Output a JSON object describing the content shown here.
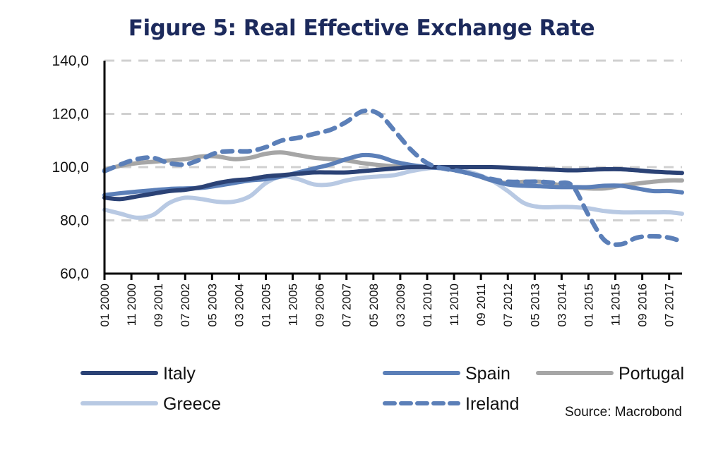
{
  "title": "Figure 5: Real Effective Exchange Rate",
  "source": "Source: Macrobond",
  "chart_data": {
    "type": "line",
    "title": "Figure 5: Real Effective Exchange Rate",
    "xlabel": "",
    "ylabel": "",
    "ylim": [
      60,
      140
    ],
    "yticks": [
      "60,0",
      "80,0",
      "100,0",
      "120,0",
      "140,0"
    ],
    "ytick_values": [
      60,
      80,
      100,
      120,
      140
    ],
    "grid": "horizontal dashed",
    "legend_position": "bottom",
    "x_tick_labels": [
      "01 2000",
      "11 2000",
      "09 2001",
      "07 2002",
      "05 2003",
      "03 2004",
      "01 2005",
      "11 2005",
      "09 2006",
      "07 2007",
      "05 2008",
      "03 2009",
      "01 2010",
      "11 2010",
      "09 2011",
      "07 2012",
      "05 2013",
      "03 2014",
      "01 2015",
      "11 2015",
      "09 2016",
      "07 2017"
    ],
    "x": [
      2000.0,
      2000.5,
      2001.0,
      2001.5,
      2002.0,
      2002.5,
      2003.0,
      2003.5,
      2004.0,
      2004.5,
      2005.0,
      2005.5,
      2006.0,
      2006.5,
      2007.0,
      2007.5,
      2008.0,
      2008.5,
      2009.0,
      2009.5,
      2010.0,
      2010.5,
      2011.0,
      2011.5,
      2012.0,
      2012.5,
      2013.0,
      2013.5,
      2014.0,
      2014.5,
      2015.0,
      2015.5,
      2016.0,
      2016.5,
      2017.0,
      2017.5,
      2017.9
    ],
    "x_range": [
      2000.0,
      2017.9
    ],
    "series": [
      {
        "name": "Italy",
        "color": "#2b4275",
        "dash": false,
        "values": [
          88.5,
          88,
          89,
          90,
          91,
          91.5,
          92.5,
          94,
          95,
          95.5,
          96.5,
          97,
          97.5,
          98,
          98,
          98,
          98.5,
          99,
          99.5,
          100,
          100,
          100,
          100,
          100,
          100,
          99.8,
          99.5,
          99.2,
          99,
          98.8,
          99,
          99.2,
          99.2,
          98.8,
          98.3,
          98,
          97.8
        ]
      },
      {
        "name": "Spain",
        "color": "#5b7fb8",
        "dash": false,
        "values": [
          89.5,
          90.2,
          90.8,
          91.3,
          91.8,
          92,
          92.2,
          93,
          94,
          95,
          95.5,
          96.5,
          98,
          99.5,
          101,
          103,
          104.5,
          104,
          102,
          100.8,
          100,
          99.5,
          98.5,
          97,
          95,
          93.5,
          93,
          92.8,
          92.5,
          92.5,
          92.5,
          93,
          93,
          92,
          91,
          91,
          90.5
        ]
      },
      {
        "name": "Portugal",
        "color": "#a6a6a6",
        "dash": false,
        "values": [
          99,
          100.5,
          101.5,
          102,
          102.5,
          103,
          104,
          104,
          103,
          103.5,
          105,
          105.5,
          104.5,
          103.5,
          103,
          102.5,
          101.5,
          100.8,
          100.3,
          100,
          100,
          99.5,
          98.5,
          97,
          95,
          94,
          94.5,
          94.5,
          93.5,
          92.5,
          92,
          92,
          93,
          93.8,
          94.5,
          95,
          95
        ]
      },
      {
        "name": "Greece",
        "color": "#b8c9e3",
        "dash": false,
        "values": [
          84,
          82.5,
          81,
          82,
          86.5,
          88.5,
          88,
          87,
          87,
          89,
          94,
          96.5,
          95.5,
          93.5,
          93.5,
          95,
          96,
          96.5,
          97,
          98.5,
          99.5,
          100,
          99,
          97.5,
          95,
          91,
          86.5,
          85,
          85,
          85,
          84.5,
          83.5,
          83,
          83,
          83,
          83,
          82.5
        ]
      },
      {
        "name": "Ireland",
        "color": "#5b7fb8",
        "dash": true,
        "values": [
          98.5,
          101,
          103,
          103.5,
          101.5,
          101,
          103,
          105.5,
          106,
          106,
          107.5,
          110,
          111,
          112.5,
          114,
          117,
          121,
          120,
          113.5,
          106.5,
          101.5,
          99.5,
          98.5,
          97,
          95.5,
          94.5,
          94.5,
          94.5,
          94,
          93,
          82,
          72.5,
          71,
          73.5,
          74,
          73.5,
          72
        ]
      }
    ]
  },
  "legend": [
    {
      "name": "Italy",
      "label": "Italy"
    },
    {
      "name": "Spain",
      "label": "Spain"
    },
    {
      "name": "Portugal",
      "label": "Portugal"
    },
    {
      "name": "Greece",
      "label": "Greece"
    },
    {
      "name": "Ireland",
      "label": "Ireland"
    }
  ]
}
